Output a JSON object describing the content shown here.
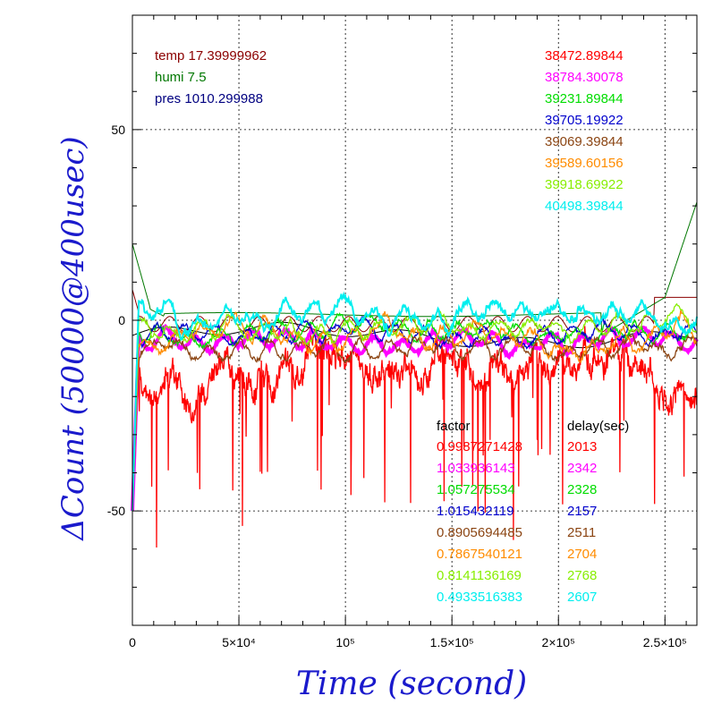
{
  "chart_data": {
    "type": "line",
    "xlabel": "Time (second)",
    "ylabel": "ΔCount (50000@400usec)",
    "xlim": [
      0,
      265000
    ],
    "ylim": [
      -80,
      80
    ],
    "x_ticks": [
      {
        "value": 0,
        "label": "0"
      },
      {
        "value": 50000,
        "label": "5×10⁴"
      },
      {
        "value": 100000,
        "label": "10⁵"
      },
      {
        "value": 150000,
        "label": "1.5×10⁵"
      },
      {
        "value": 200000,
        "label": "2×10⁵"
      },
      {
        "value": 250000,
        "label": "2.5×10⁵"
      }
    ],
    "y_ticks": [
      {
        "value": 50,
        "label": "50"
      },
      {
        "value": 0,
        "label": "0"
      },
      {
        "value": -50,
        "label": "-50"
      }
    ],
    "grid": true,
    "env_labels": [
      {
        "text": "temp 17.39999962",
        "color": "#8b0000"
      },
      {
        "text": "humi 7.5",
        "color": "#007700"
      },
      {
        "text": "pres 1010.299988",
        "color": "#000080"
      }
    ],
    "series_values_header": "",
    "factor_header": "factor",
    "delay_header": "delay(sec)",
    "series": [
      {
        "value": "38472.89844",
        "factor": "0.9987271428",
        "delay": "2013",
        "color": "#ff0000",
        "mean": -14,
        "noise": 3.2,
        "spikes": true
      },
      {
        "value": "38784.30078",
        "factor": "1.033936143",
        "delay": "2342",
        "color": "#ff00ff",
        "mean": -5.5,
        "noise": 0.6,
        "spikes": false
      },
      {
        "value": "39231.89844",
        "factor": "1.057275534",
        "delay": "2328",
        "color": "#00dd00",
        "mean": -3,
        "noise": 0.9,
        "spikes": false
      },
      {
        "value": "39705.19922",
        "factor": "1.015432119",
        "delay": "2157",
        "color": "#0000cc",
        "mean": -4,
        "noise": 0.8,
        "spikes": false
      },
      {
        "value": "39069.39844",
        "factor": "0.8905694485",
        "delay": "2511",
        "color": "#8b4513",
        "mean": -7,
        "noise": 1.0,
        "spikes": false
      },
      {
        "value": "39589.60156",
        "factor": "0.7867540121",
        "delay": "2704",
        "color": "#ff8c00",
        "mean": -3.5,
        "noise": 1.2,
        "spikes": false
      },
      {
        "value": "39918.69922",
        "factor": "0.8141136169",
        "delay": "2768",
        "color": "#88ee00",
        "mean": -1.5,
        "noise": 0.9,
        "spikes": false
      },
      {
        "value": "40498.39844",
        "factor": "0.4933516383",
        "delay": "2607",
        "color": "#00eeee",
        "mean": 1,
        "noise": 1.4,
        "spikes": false
      }
    ],
    "env_series": [
      {
        "name_ref": "temp",
        "color": "#8b0000",
        "kind": "temp"
      },
      {
        "name_ref": "humi",
        "color": "#007700",
        "kind": "humi"
      },
      {
        "name_ref": "pres",
        "color": "#000000",
        "kind": "pres"
      }
    ]
  }
}
